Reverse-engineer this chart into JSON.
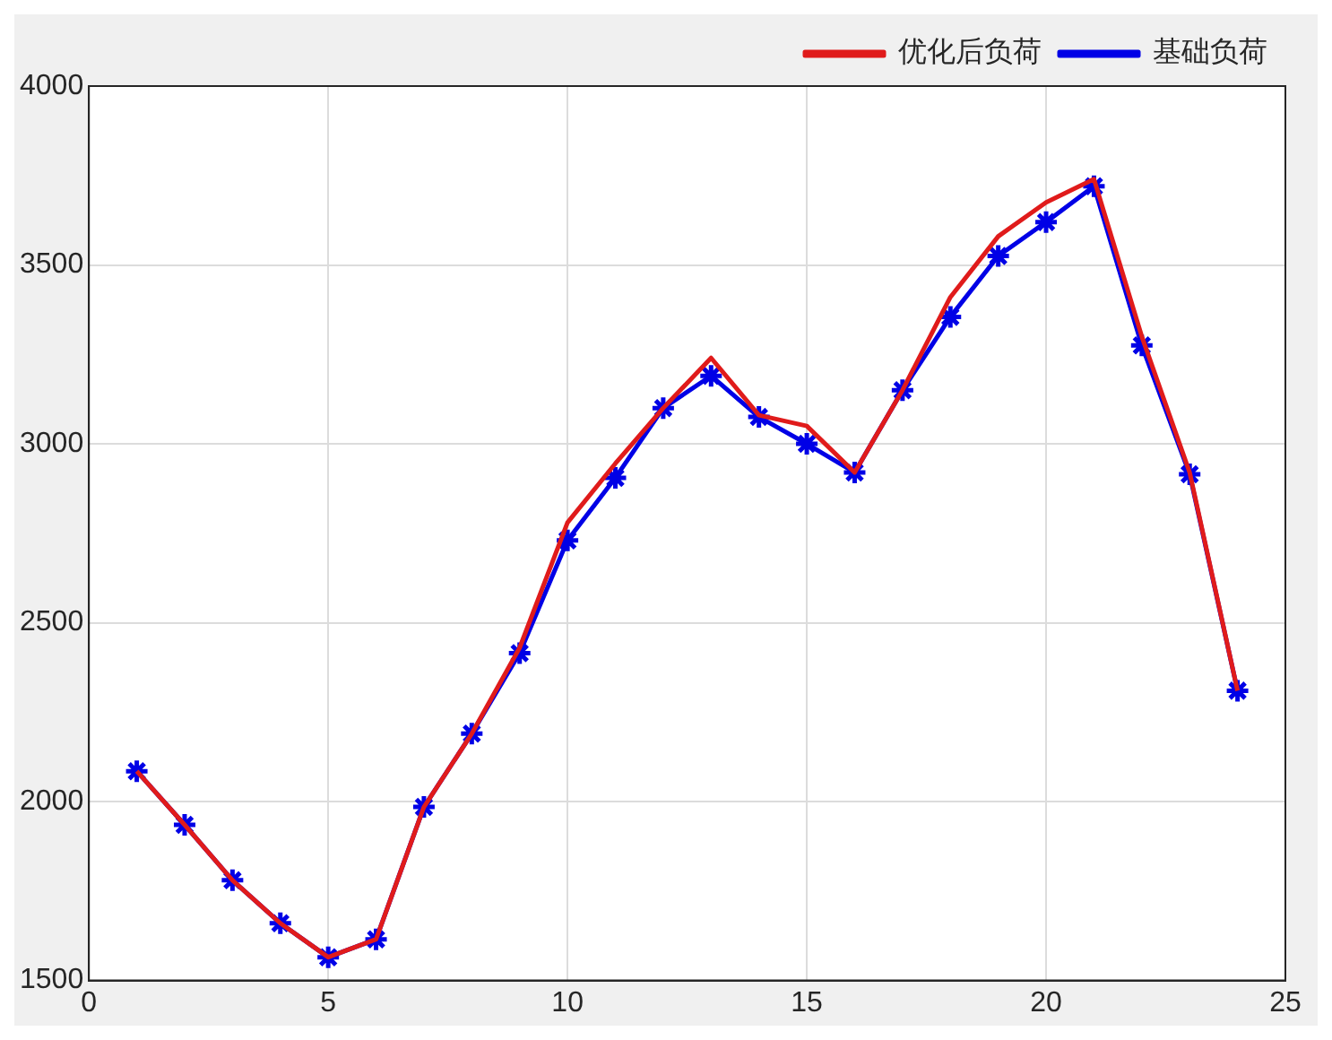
{
  "chart_data": {
    "type": "line",
    "x": [
      1,
      2,
      3,
      4,
      5,
      6,
      7,
      8,
      9,
      10,
      11,
      12,
      13,
      14,
      15,
      16,
      17,
      18,
      19,
      20,
      21,
      22,
      23,
      24
    ],
    "series": [
      {
        "name": "优化后负荷",
        "color": "#e01b1b",
        "marker": "none",
        "values": [
          2085,
          1935,
          1780,
          1660,
          1565,
          1615,
          1985,
          2190,
          2430,
          2780,
          2945,
          3100,
          3240,
          3080,
          3050,
          2920,
          3150,
          3410,
          3580,
          3675,
          3740,
          3300,
          2920,
          2310
        ]
      },
      {
        "name": "基础负荷",
        "color": "#0000e6",
        "marker": "cross",
        "values": [
          2085,
          1935,
          1780,
          1660,
          1565,
          1615,
          1985,
          2190,
          2415,
          2730,
          2905,
          3100,
          3190,
          3075,
          3000,
          2920,
          3150,
          3355,
          3525,
          3620,
          3720,
          3275,
          2915,
          2310
        ]
      }
    ],
    "xlim": [
      0,
      25
    ],
    "xticks": [
      0,
      5,
      10,
      15,
      20,
      25
    ],
    "ylim": [
      1500,
      4000
    ],
    "yticks": [
      1500,
      2000,
      2500,
      3000,
      3500,
      4000
    ],
    "grid": true,
    "legend": "top right",
    "line_style": "solid"
  }
}
